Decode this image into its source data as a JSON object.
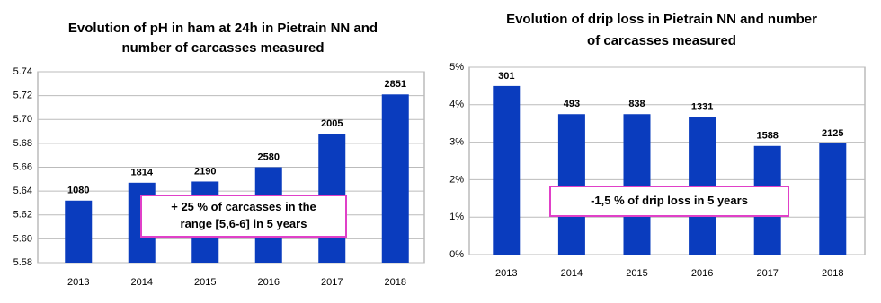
{
  "chart_data": [
    {
      "type": "bar",
      "title": [
        "Evolution of pH in ham at 24h in Pietrain NN and",
        "number of carcasses measured"
      ],
      "categories": [
        "2013",
        "2014",
        "2015",
        "2016",
        "2017",
        "2018"
      ],
      "values": [
        5.632,
        5.647,
        5.648,
        5.66,
        5.688,
        5.721
      ],
      "carcass_counts": [
        1080,
        1814,
        2190,
        2580,
        2005,
        2851
      ],
      "color": "#0a3cbe",
      "ylim": [
        5.58,
        5.74
      ],
      "yticks": [
        5.58,
        {
          "value": 5.6,
          "label": "5.60"
        },
        5.62,
        5.64,
        5.66,
        5.68,
        {
          "value": 5.7,
          "label": "5.70"
        },
        5.72,
        5.74
      ],
      "grid": true,
      "annotation": [
        "+ 25 % of carcasses in the",
        "range [5,6-6] in 5 years"
      ]
    },
    {
      "type": "bar",
      "title": [
        "Evolution of drip loss in Pietrain NN and number",
        "of carcasses measured"
      ],
      "categories": [
        "2013",
        "2014",
        "2015",
        "2016",
        "2017",
        "2018"
      ],
      "values": [
        4.5,
        3.75,
        3.75,
        3.67,
        2.9,
        2.97
      ],
      "carcass_counts": [
        301,
        493,
        838,
        1331,
        1588,
        2125
      ],
      "color": "#0a3cbe",
      "ylim": [
        0,
        5
      ],
      "yticks": [
        {
          "value": 0,
          "label": "0%"
        },
        {
          "value": 1,
          "label": "1%"
        },
        {
          "value": 2,
          "label": "2%"
        },
        {
          "value": 3,
          "label": "3%"
        },
        {
          "value": 4,
          "label": "4%"
        },
        {
          "value": 5,
          "label": "5%"
        }
      ],
      "grid": true,
      "annotation": [
        "-1,5 % of drip loss in 5 years"
      ]
    }
  ]
}
